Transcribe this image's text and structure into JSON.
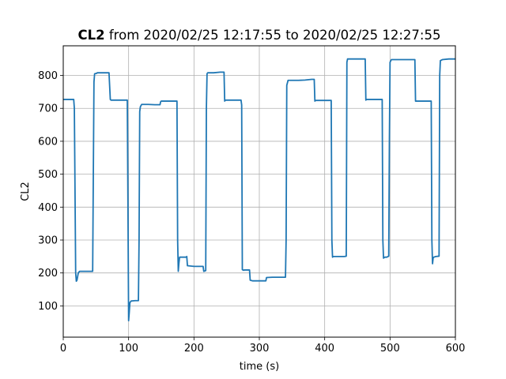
{
  "chart_data": {
    "type": "line",
    "title_bold": "CL2",
    "title_rest": " from 2020/02/25 12:17:55 to 2020/02/25 12:27:55",
    "xlabel": "time (s)",
    "ylabel": "CL2",
    "xlim": [
      0,
      600
    ],
    "ylim": [
      5,
      890
    ],
    "grid": true,
    "x_ticks": [
      0,
      100,
      200,
      300,
      400,
      500,
      600
    ],
    "y_ticks": [
      100,
      200,
      300,
      400,
      500,
      600,
      700,
      800
    ],
    "line_color": "#1f77b4",
    "series": [
      {
        "x": [
          0,
          16,
          17,
          19,
          20,
          21,
          23,
          25,
          30,
          45,
          47,
          48,
          50,
          51,
          52,
          60,
          70,
          72,
          73,
          80,
          90,
          98,
          99,
          100,
          101,
          102,
          104,
          105,
          110,
          115,
          116,
          117,
          118,
          120,
          121,
          130,
          140,
          148,
          149,
          150,
          160,
          174,
          175,
          176,
          177,
          178,
          180,
          188,
          189,
          190,
          200,
          210,
          214,
          215,
          218,
          219,
          220,
          221,
          222,
          230,
          240,
          246,
          247,
          248,
          250,
          260,
          272,
          273,
          274,
          276,
          277,
          285,
          286,
          290,
          300,
          310,
          311,
          320,
          330,
          340,
          341,
          342,
          344,
          350,
          360,
          370,
          380,
          384,
          385,
          386,
          390,
          400,
          410,
          411,
          412,
          413,
          415,
          420,
          430,
          433,
          434,
          435,
          437,
          440,
          450,
          462,
          463,
          464,
          470,
          480,
          488,
          489,
          490,
          492,
          495,
          498,
          499,
          500,
          502,
          510,
          520,
          530,
          538,
          539,
          540,
          545,
          550,
          560,
          563,
          564,
          565,
          566,
          567,
          570,
          575,
          576,
          577,
          580,
          590,
          600
        ],
        "y": [
          727,
          727,
          700,
          200,
          175,
          178,
          200,
          205,
          205,
          205,
          780,
          805,
          806,
          806,
          808,
          808,
          808,
          727,
          725,
          725,
          725,
          725,
          400,
          55,
          80,
          110,
          115,
          115,
          116,
          116,
          300,
          690,
          705,
          712,
          712,
          712,
          711,
          711,
          720,
          722,
          722,
          722,
          300,
          205,
          230,
          248,
          248,
          248,
          250,
          222,
          220,
          220,
          220,
          205,
          207,
          700,
          805,
          808,
          808,
          808,
          810,
          810,
          722,
          725,
          725,
          725,
          725,
          710,
          210,
          208,
          209,
          209,
          178,
          176,
          176,
          176,
          186,
          187,
          187,
          187,
          300,
          770,
          785,
          785,
          785,
          786,
          788,
          788,
          722,
          724,
          724,
          724,
          724,
          300,
          248,
          250,
          250,
          250,
          250,
          251,
          840,
          850,
          850,
          850,
          850,
          850,
          725,
          727,
          727,
          727,
          727,
          300,
          245,
          248,
          248,
          251,
          600,
          840,
          848,
          848,
          848,
          848,
          848,
          722,
          722,
          722,
          722,
          722,
          722,
          300,
          228,
          246,
          248,
          250,
          251,
          800,
          845,
          848,
          850,
          850
        ]
      }
    ]
  }
}
